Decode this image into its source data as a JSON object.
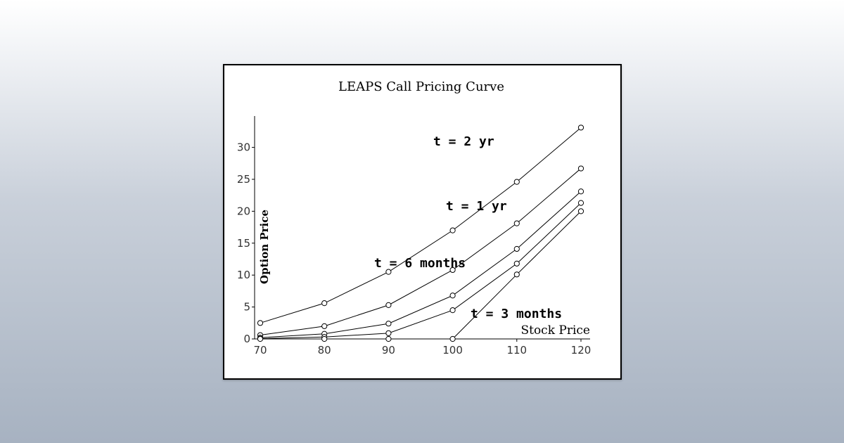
{
  "chart_data": {
    "type": "line",
    "title": "LEAPS Call Pricing Curve",
    "xlabel": "Stock Price",
    "ylabel": "Option Price",
    "x": [
      70,
      80,
      90,
      100,
      110,
      120
    ],
    "xlim": [
      70,
      120
    ],
    "ylim": [
      0,
      35
    ],
    "xticks": [
      "70",
      "80",
      "90",
      "100",
      "110",
      "120"
    ],
    "yticks": [
      "0",
      "5",
      "10",
      "15",
      "20",
      "25",
      "30"
    ],
    "grid": false,
    "series": [
      {
        "name": "t = 2 yr",
        "values": [
          2.5,
          5.6,
          10.5,
          17.0,
          24.6,
          33.1
        ]
      },
      {
        "name": "t = 1 yr",
        "values": [
          0.6,
          2.0,
          5.3,
          10.8,
          18.1,
          26.7
        ]
      },
      {
        "name": "t = 6 months",
        "values": [
          0.2,
          0.8,
          2.4,
          6.8,
          14.1,
          23.1
        ]
      },
      {
        "name": "",
        "values": [
          0.05,
          0.3,
          0.9,
          4.5,
          11.8,
          21.3
        ]
      },
      {
        "name": "t = 3 months",
        "values": [
          0.0,
          0.0,
          0.0,
          0.0,
          10.1,
          20.0
        ]
      }
    ]
  }
}
